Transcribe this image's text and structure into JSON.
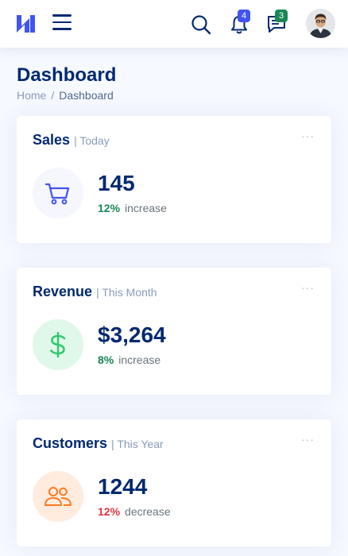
{
  "header": {
    "logo_icon": "brand-logo-icon",
    "notifications_count": "4",
    "messages_count": "3",
    "colors": {
      "accent": "#4154f1",
      "navy": "#012970",
      "messages_badge": "#198754"
    }
  },
  "page": {
    "title": "Dashboard",
    "breadcrumb": {
      "home": "Home",
      "separator": "/",
      "current": "Dashboard"
    }
  },
  "cards": [
    {
      "title": "Sales",
      "separator": "|",
      "period": "Today",
      "menu": "···",
      "icon": "cart-icon",
      "value": "145",
      "percent": "12%",
      "trend": "increase",
      "icon_bg": "#f6f6fe",
      "icon_color": "#4154f1",
      "trend_color": "#198754"
    },
    {
      "title": "Revenue",
      "separator": "|",
      "period": "This Month",
      "menu": "···",
      "icon": "dollar-icon",
      "value": "$3,264",
      "percent": "8%",
      "trend": "increase",
      "icon_bg": "#e0f8e9",
      "icon_color": "#2eca6a",
      "trend_color": "#198754"
    },
    {
      "title": "Customers",
      "separator": "|",
      "period": "This Year",
      "menu": "···",
      "icon": "people-icon",
      "value": "1244",
      "percent": "12%",
      "trend": "decrease",
      "icon_bg": "#ffecdf",
      "icon_color": "#ff771d",
      "trend_color": "#dc3545"
    }
  ]
}
